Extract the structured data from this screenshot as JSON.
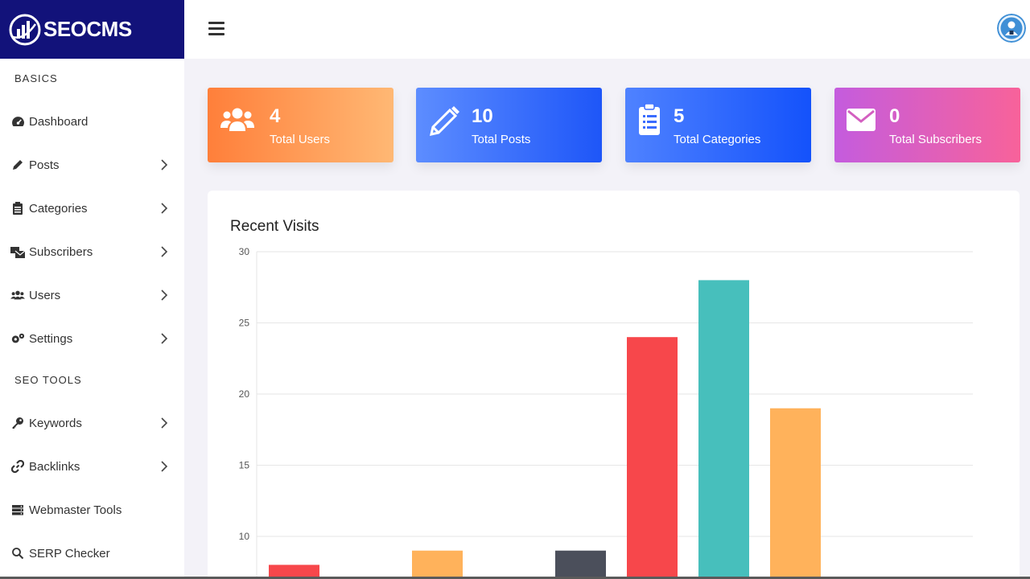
{
  "brand": {
    "name": "SEOCMS"
  },
  "sidebar": {
    "sections": [
      {
        "label": "BASICS"
      },
      {
        "label": "SEO TOOLS"
      }
    ],
    "items": [
      {
        "label": "Dashboard",
        "icon": "dashboard-icon",
        "has_submenu": false
      },
      {
        "label": "Posts",
        "icon": "pencil-icon",
        "has_submenu": true
      },
      {
        "label": "Categories",
        "icon": "clipboard-icon",
        "has_submenu": true
      },
      {
        "label": "Subscribers",
        "icon": "mail-bulk-icon",
        "has_submenu": true
      },
      {
        "label": "Users",
        "icon": "users-icon",
        "has_submenu": true
      },
      {
        "label": "Settings",
        "icon": "gears-icon",
        "has_submenu": true
      },
      {
        "label": "Keywords",
        "icon": "key-icon",
        "has_submenu": true
      },
      {
        "label": "Backlinks",
        "icon": "link-icon",
        "has_submenu": true
      },
      {
        "label": "Webmaster Tools",
        "icon": "server-icon",
        "has_submenu": false
      },
      {
        "label": "SERP Checker",
        "icon": "search-icon",
        "has_submenu": false
      }
    ]
  },
  "topbar": {
    "menu_icon": "hamburger-icon",
    "avatar_icon": "user-avatar-icon"
  },
  "stats": {
    "users": {
      "value": "4",
      "label": "Total Users"
    },
    "posts": {
      "value": "10",
      "label": "Total Posts"
    },
    "categories": {
      "value": "5",
      "label": "Total Categories"
    },
    "subscribers": {
      "value": "0",
      "label": "Total Subscribers"
    }
  },
  "colors": {
    "sidebar_brand_bg": "#12127a",
    "bar_red": "#f7474b",
    "bar_orange": "#ffb25b",
    "bar_dark": "#4b4f5b",
    "bar_teal": "#47bfbc"
  },
  "chart_data": {
    "type": "bar",
    "title": "Recent Visits",
    "y_ticks": [
      "30",
      "25",
      "20",
      "15",
      "10"
    ],
    "ylim": [
      0,
      30
    ],
    "grid": true,
    "slots": 10,
    "bars": [
      {
        "slot": 0,
        "value": 8,
        "color": "#f7474b"
      },
      {
        "slot": 2,
        "value": 9,
        "color": "#ffb25b"
      },
      {
        "slot": 4,
        "value": 9,
        "color": "#4b4f5b"
      },
      {
        "slot": 5,
        "value": 24,
        "color": "#f7474b"
      },
      {
        "slot": 6,
        "value": 28,
        "color": "#47bfbc"
      },
      {
        "slot": 7,
        "value": 19,
        "color": "#ffb25b"
      }
    ]
  }
}
